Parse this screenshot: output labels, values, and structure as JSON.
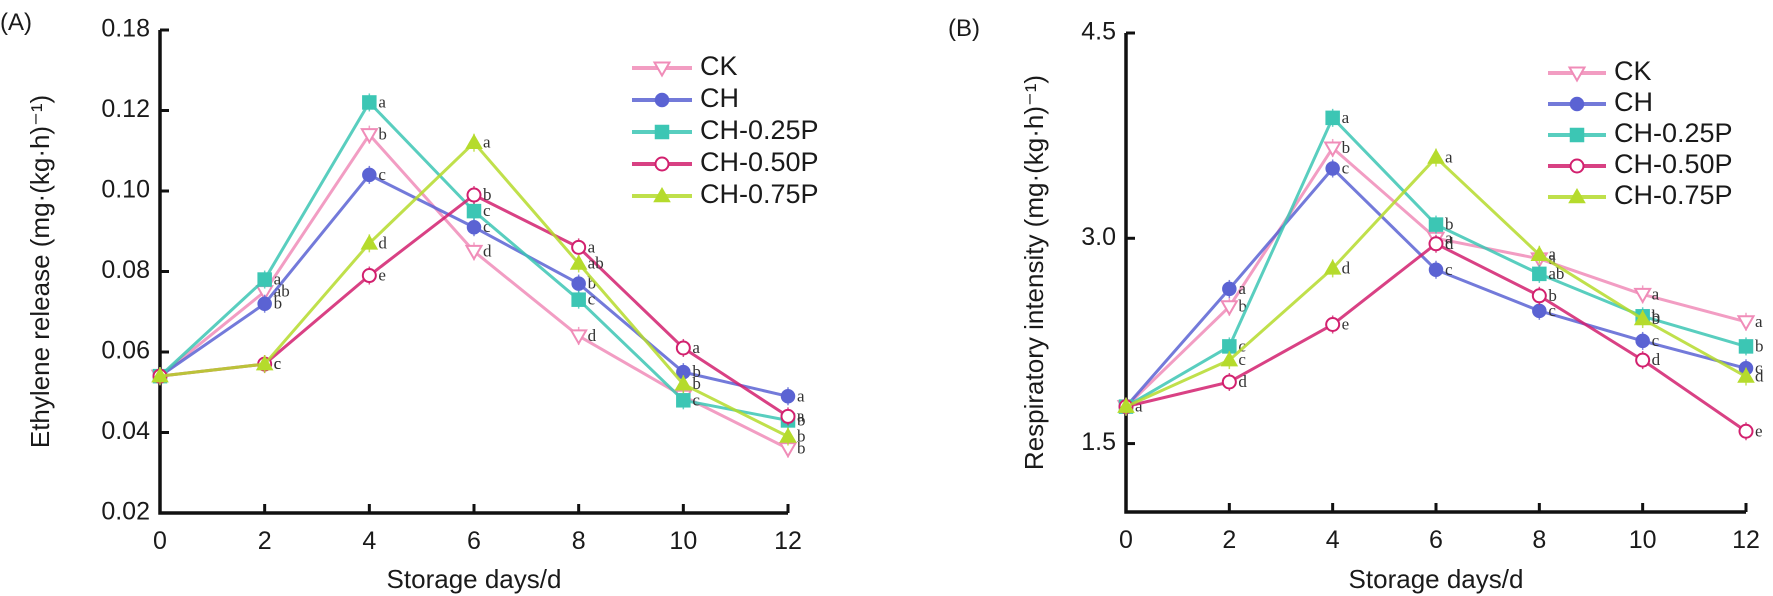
{
  "chart_data": [
    {
      "type": "line",
      "panel_label": "(A)",
      "title": "",
      "xlabel": "Storage days/d",
      "ylabel": "Ethylene release (mg·(kg·h)⁻¹)",
      "x": [
        0,
        2,
        4,
        6,
        8,
        10,
        12
      ],
      "xlim": [
        0,
        12
      ],
      "xticks": [
        "0",
        "2",
        "4",
        "6",
        "8",
        "10",
        "12"
      ],
      "ylim": [
        0.02,
        0.14
      ],
      "yticks": [
        {
          "value": 0.02,
          "label": "0.02"
        },
        {
          "value": 0.04,
          "label": "0.04"
        },
        {
          "value": 0.06,
          "label": "0.06"
        },
        {
          "value": 0.08,
          "label": "0.08"
        },
        {
          "value": 0.1,
          "label": "0.10"
        },
        {
          "value": 0.12,
          "label": "0.12"
        },
        {
          "value": 0.14,
          "label": "0.18"
        }
      ],
      "axis_break_note": "top tick labelled 0.18 (axis break)",
      "grid": false,
      "legend_position": "top-right",
      "series": [
        {
          "name": "CK",
          "color": "#f08cb8",
          "marker": "triangle-down-open",
          "values": [
            0.054,
            0.075,
            0.114,
            0.085,
            0.064,
            0.049,
            0.036
          ],
          "letters": [
            "",
            "ab",
            "b",
            "d",
            "d",
            "",
            "b"
          ]
        },
        {
          "name": "CH",
          "color": "#5b63d3",
          "marker": "circle-filled",
          "values": [
            0.054,
            0.072,
            0.104,
            0.091,
            0.077,
            0.055,
            0.049
          ],
          "letters": [
            "",
            "b",
            "c",
            "c",
            "b",
            "b",
            "a"
          ]
        },
        {
          "name": "CH-0.25P",
          "color": "#3cc6b4",
          "marker": "square-filled",
          "values": [
            0.054,
            0.078,
            0.122,
            0.095,
            0.073,
            0.048,
            0.043
          ],
          "letters": [
            "",
            "a",
            "a",
            "c",
            "c",
            "c",
            "b"
          ]
        },
        {
          "name": "CH-0.50P",
          "color": "#d2206e",
          "marker": "circle-open",
          "values": [
            0.054,
            0.057,
            0.079,
            0.099,
            0.086,
            0.061,
            0.044
          ],
          "letters": [
            "",
            "c",
            "e",
            "b",
            "a",
            "a",
            "a"
          ]
        },
        {
          "name": "CH-0.75P",
          "color": "#b5db2c",
          "marker": "triangle-up-filled",
          "values": [
            0.054,
            0.057,
            0.087,
            0.112,
            0.082,
            0.052,
            0.039
          ],
          "letters": [
            "",
            "c",
            "d",
            "a",
            "ab",
            "b",
            "b"
          ]
        }
      ]
    },
    {
      "type": "line",
      "panel_label": "(B)",
      "title": "",
      "xlabel": "Storage days/d",
      "ylabel": "Respiratory intensity (mg·(kg·h)⁻¹)",
      "x": [
        0,
        2,
        4,
        6,
        8,
        10,
        12
      ],
      "xlim": [
        0,
        12
      ],
      "xticks": [
        "0",
        "2",
        "4",
        "6",
        "8",
        "10",
        "12"
      ],
      "ylim": [
        1.0,
        4.5
      ],
      "yticks": [
        {
          "value": 1.5,
          "label": "1.5"
        },
        {
          "value": 3.0,
          "label": "3.0"
        },
        {
          "value": 4.5,
          "label": "4.5"
        }
      ],
      "grid": false,
      "legend_position": "top-right",
      "series": [
        {
          "name": "CK",
          "color": "#f08cb8",
          "marker": "triangle-down-open",
          "values": [
            1.77,
            2.5,
            3.66,
            3.0,
            2.85,
            2.59,
            2.39
          ],
          "letters": [
            "a",
            "b",
            "b",
            "a",
            "a",
            "a",
            "a"
          ]
        },
        {
          "name": "CH",
          "color": "#5b63d3",
          "marker": "circle-filled",
          "values": [
            1.77,
            2.63,
            3.51,
            2.77,
            2.47,
            2.25,
            2.05
          ],
          "letters": [
            "",
            "a",
            "c",
            "c",
            "c",
            "c",
            "c"
          ]
        },
        {
          "name": "CH-0.25P",
          "color": "#3cc6b4",
          "marker": "square-filled",
          "values": [
            1.77,
            2.21,
            3.88,
            3.1,
            2.74,
            2.43,
            2.21
          ],
          "letters": [
            "",
            "c",
            "a",
            "b",
            "ab",
            "b",
            "b"
          ]
        },
        {
          "name": "CH-0.50P",
          "color": "#d2206e",
          "marker": "circle-open",
          "values": [
            1.77,
            1.95,
            2.37,
            2.96,
            2.58,
            2.11,
            1.59
          ],
          "letters": [
            "",
            "d",
            "e",
            "d",
            "b",
            "d",
            "e"
          ]
        },
        {
          "name": "CH-0.75P",
          "color": "#b5db2c",
          "marker": "triangle-up-filled",
          "values": [
            1.77,
            2.11,
            2.78,
            3.59,
            2.88,
            2.41,
            1.99
          ],
          "letters": [
            "",
            "c",
            "d",
            "a",
            "a",
            "b",
            "d"
          ]
        }
      ]
    }
  ]
}
